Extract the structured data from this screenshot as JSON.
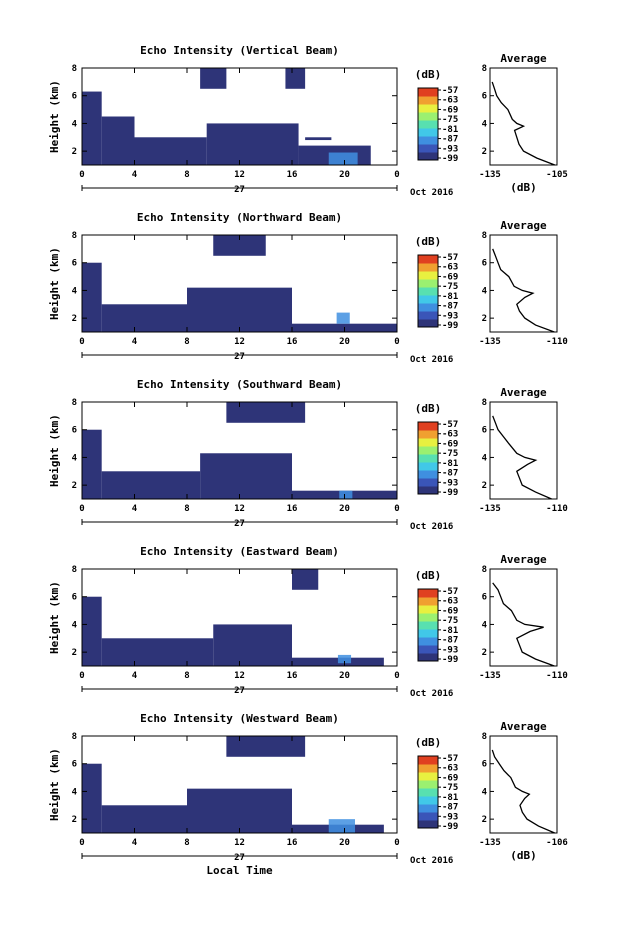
{
  "colors": {
    "background": "#ffffff",
    "echo_fill": "#2e3478",
    "colorbar": [
      "#2e3478",
      "#3a55b8",
      "#3f8fe0",
      "#41c8e8",
      "#58e0b0",
      "#9bf070",
      "#e8f040",
      "#f0a030",
      "#e04020"
    ]
  },
  "chart_data": [
    {
      "type": "heatmap",
      "title": "Echo Intensity (Vertical Beam)",
      "ylabel": "Height (km)",
      "xlabel": "",
      "x_ticks": [
        "0",
        "4",
        "8",
        "12",
        "16",
        "20",
        "0"
      ],
      "y_ticks": [
        "2",
        "4",
        "6",
        "8"
      ],
      "ylim": [
        1,
        8
      ],
      "xlim": [
        0,
        24
      ],
      "date_label": "27",
      "month_label": "Oct 2016",
      "colorbar": {
        "unit": "(dB)",
        "ticks": [
          "-57",
          "-63",
          "-69",
          "-75",
          "-81",
          "-87",
          "-93",
          "-99"
        ]
      },
      "average_profile": {
        "title": "Average",
        "x_ticks": [
          "-135",
          "-105"
        ],
        "xlim": [
          -135,
          -105
        ],
        "y_ticks": [
          "2",
          "4",
          "6",
          "8"
        ],
        "xlabel": "(dB)",
        "height": [
          1.0,
          1.5,
          2.0,
          2.5,
          3.0,
          3.5,
          3.8,
          4.0,
          4.3,
          5.0,
          5.5,
          6.0,
          6.5,
          7.0
        ],
        "values": [
          -106,
          -114,
          -120,
          -122,
          -123,
          -124,
          -120,
          -123,
          -125,
          -127,
          -130,
          -132,
          -133,
          -134
        ]
      },
      "echo_regions": [
        {
          "t0": 0,
          "t1": 1.5,
          "h0": 1,
          "h1": 6.3
        },
        {
          "t0": 1.5,
          "t1": 4,
          "h0": 1,
          "h1": 4.5
        },
        {
          "t0": 4,
          "t1": 9.5,
          "h0": 1,
          "h1": 3.0
        },
        {
          "t0": 9.5,
          "t1": 16.5,
          "h0": 1,
          "h1": 4.0
        },
        {
          "t0": 16.5,
          "t1": 22,
          "h0": 1,
          "h1": 2.4
        },
        {
          "t0": 17,
          "t1": 19,
          "h0": 2.8,
          "h1": 3.0
        },
        {
          "t0": 9,
          "t1": 11,
          "h0": 6.5,
          "h1": 8
        },
        {
          "t0": 15.5,
          "t1": 17,
          "h0": 6.5,
          "h1": 8
        }
      ],
      "bright_patch": {
        "t0": 18.8,
        "t1": 21,
        "h0": 1.0,
        "h1": 1.9
      }
    },
    {
      "type": "heatmap",
      "title": "Echo Intensity (Northward Beam)",
      "ylabel": "Height (km)",
      "xlabel": "",
      "x_ticks": [
        "0",
        "4",
        "8",
        "12",
        "16",
        "20",
        "0"
      ],
      "y_ticks": [
        "2",
        "4",
        "6",
        "8"
      ],
      "ylim": [
        1,
        8
      ],
      "xlim": [
        0,
        24
      ],
      "date_label": "27",
      "month_label": "Oct 2016",
      "colorbar": {
        "unit": "(dB)",
        "ticks": [
          "-57",
          "-63",
          "-69",
          "-75",
          "-81",
          "-87",
          "-93",
          "-99"
        ]
      },
      "average_profile": {
        "title": "Average",
        "x_ticks": [
          "-135",
          "-110"
        ],
        "xlim": [
          -135,
          -110
        ],
        "y_ticks": [
          "2",
          "4",
          "6",
          "8"
        ],
        "xlabel": "",
        "height": [
          1.0,
          1.5,
          2.0,
          2.5,
          3.0,
          3.5,
          3.8,
          4.0,
          4.3,
          5.0,
          5.5,
          6.0,
          6.5,
          7.0
        ],
        "values": [
          -111,
          -118,
          -122,
          -124,
          -125,
          -122,
          -119,
          -123,
          -126,
          -128,
          -131,
          -132,
          -133,
          -134
        ]
      },
      "echo_regions": [
        {
          "t0": 0,
          "t1": 1.5,
          "h0": 1,
          "h1": 6.0
        },
        {
          "t0": 1.5,
          "t1": 8,
          "h0": 1,
          "h1": 3.0
        },
        {
          "t0": 8,
          "t1": 16,
          "h0": 1,
          "h1": 4.2
        },
        {
          "t0": 16,
          "t1": 24,
          "h0": 1,
          "h1": 1.6
        },
        {
          "t0": 10,
          "t1": 14,
          "h0": 6.5,
          "h1": 8
        }
      ],
      "bright_patch": {
        "t0": 19.4,
        "t1": 20.4,
        "h0": 1.6,
        "h1": 2.4
      }
    },
    {
      "type": "heatmap",
      "title": "Echo Intensity (Southward Beam)",
      "ylabel": "Height (km)",
      "xlabel": "",
      "x_ticks": [
        "0",
        "4",
        "8",
        "12",
        "16",
        "20",
        "0"
      ],
      "y_ticks": [
        "2",
        "4",
        "6",
        "8"
      ],
      "ylim": [
        1,
        8
      ],
      "xlim": [
        0,
        24
      ],
      "date_label": "27",
      "month_label": "Oct 2016",
      "colorbar": {
        "unit": "(dB)",
        "ticks": [
          "-57",
          "-63",
          "-69",
          "-75",
          "-81",
          "-87",
          "-93",
          "-99"
        ]
      },
      "average_profile": {
        "title": "Average",
        "x_ticks": [
          "-135",
          "-110"
        ],
        "xlim": [
          -135,
          -110
        ],
        "y_ticks": [
          "2",
          "4",
          "6",
          "8"
        ],
        "xlabel": "",
        "height": [
          1.0,
          1.5,
          2.0,
          2.5,
          3.0,
          3.5,
          3.8,
          4.0,
          4.3,
          5.0,
          5.5,
          6.0,
          6.5,
          7.0
        ],
        "values": [
          -112,
          -118,
          -123,
          -124,
          -125,
          -121,
          -118,
          -122,
          -125,
          -128,
          -130,
          -132,
          -133,
          -134
        ]
      },
      "echo_regions": [
        {
          "t0": 0,
          "t1": 1.5,
          "h0": 1,
          "h1": 6.0
        },
        {
          "t0": 1.5,
          "t1": 9,
          "h0": 1,
          "h1": 3.0
        },
        {
          "t0": 9,
          "t1": 16,
          "h0": 1,
          "h1": 4.3
        },
        {
          "t0": 16,
          "t1": 24,
          "h0": 1,
          "h1": 1.6
        },
        {
          "t0": 11,
          "t1": 17,
          "h0": 6.5,
          "h1": 8
        }
      ],
      "bright_patch": {
        "t0": 19.6,
        "t1": 20.6,
        "h0": 1.0,
        "h1": 1.6
      }
    },
    {
      "type": "heatmap",
      "title": "Echo Intensity (Eastward Beam)",
      "ylabel": "Height (km)",
      "xlabel": "",
      "x_ticks": [
        "0",
        "4",
        "8",
        "12",
        "16",
        "20",
        "0"
      ],
      "y_ticks": [
        "2",
        "4",
        "6",
        "8"
      ],
      "ylim": [
        1,
        8
      ],
      "xlim": [
        0,
        24
      ],
      "date_label": "27",
      "month_label": "Oct 2016",
      "colorbar": {
        "unit": "(dB)",
        "ticks": [
          "-57",
          "-63",
          "-69",
          "-75",
          "-81",
          "-87",
          "-93",
          "-99"
        ]
      },
      "average_profile": {
        "title": "Average",
        "x_ticks": [
          "-135",
          "-110"
        ],
        "xlim": [
          -135,
          -110
        ],
        "y_ticks": [
          "2",
          "4",
          "6",
          "8"
        ],
        "xlabel": "",
        "height": [
          1.0,
          1.5,
          2.0,
          2.5,
          3.0,
          3.5,
          3.8,
          4.0,
          4.3,
          5.0,
          5.5,
          6.0,
          6.5,
          7.0
        ],
        "values": [
          -111,
          -118,
          -123,
          -124,
          -125,
          -120,
          -115,
          -122,
          -125,
          -127,
          -130,
          -131,
          -132,
          -134
        ]
      },
      "echo_regions": [
        {
          "t0": 0,
          "t1": 1.5,
          "h0": 1,
          "h1": 6.0
        },
        {
          "t0": 1.5,
          "t1": 10,
          "h0": 1,
          "h1": 3.0
        },
        {
          "t0": 10,
          "t1": 16,
          "h0": 1,
          "h1": 4.0
        },
        {
          "t0": 16,
          "t1": 23,
          "h0": 1,
          "h1": 1.6
        },
        {
          "t0": 16,
          "t1": 18,
          "h0": 6.5,
          "h1": 8
        }
      ],
      "bright_patch": {
        "t0": 19.5,
        "t1": 20.5,
        "h0": 1.2,
        "h1": 1.8
      }
    },
    {
      "type": "heatmap",
      "title": "Echo Intensity (Westward Beam)",
      "ylabel": "Height (km)",
      "xlabel": "Local Time",
      "x_ticks": [
        "0",
        "4",
        "8",
        "12",
        "16",
        "20",
        "0"
      ],
      "y_ticks": [
        "2",
        "4",
        "6",
        "8"
      ],
      "ylim": [
        1,
        8
      ],
      "xlim": [
        0,
        24
      ],
      "date_label": "27",
      "month_label": "Oct 2016",
      "colorbar": {
        "unit": "(dB)",
        "ticks": [
          "-57",
          "-63",
          "-69",
          "-75",
          "-81",
          "-87",
          "-93",
          "-99"
        ]
      },
      "average_profile": {
        "title": "Average",
        "x_ticks": [
          "-135",
          "-106"
        ],
        "xlim": [
          -135,
          -106
        ],
        "y_ticks": [
          "2",
          "4",
          "6",
          "8"
        ],
        "xlabel": "(dB)",
        "height": [
          1.0,
          1.5,
          2.0,
          2.5,
          3.0,
          3.5,
          3.8,
          4.0,
          4.3,
          5.0,
          5.5,
          6.0,
          6.5,
          7.0
        ],
        "values": [
          -107,
          -114,
          -119,
          -121,
          -122,
          -120,
          -118,
          -121,
          -124,
          -126,
          -129,
          -131,
          -133,
          -134
        ]
      },
      "echo_regions": [
        {
          "t0": 0,
          "t1": 1.5,
          "h0": 1,
          "h1": 6.0
        },
        {
          "t0": 1.5,
          "t1": 8,
          "h0": 1,
          "h1": 3.0
        },
        {
          "t0": 8,
          "t1": 16,
          "h0": 1,
          "h1": 4.2
        },
        {
          "t0": 16,
          "t1": 23,
          "h0": 1,
          "h1": 1.6
        },
        {
          "t0": 11,
          "t1": 17,
          "h0": 6.5,
          "h1": 8
        }
      ],
      "bright_patch": {
        "t0": 18.8,
        "t1": 20.8,
        "h0": 1.0,
        "h1": 2.0
      }
    }
  ]
}
